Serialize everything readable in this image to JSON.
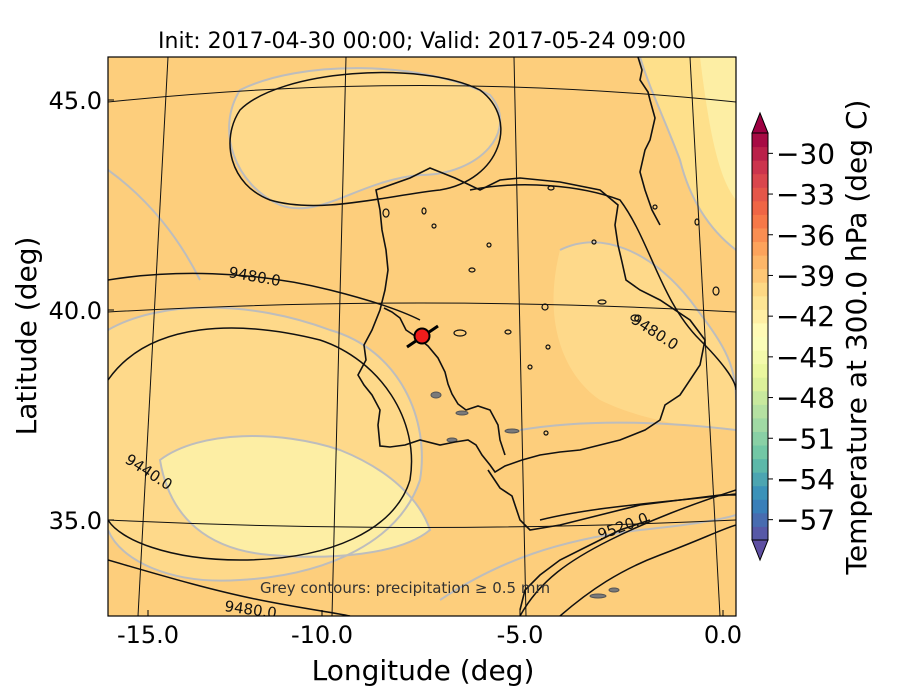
{
  "chart_data": {
    "type": "heatmap",
    "title": "Init: 2017-04-30 00:00; Valid: 2017-05-24 09:00",
    "xlabel": "Longitude (deg)",
    "ylabel": "Latitude (deg)",
    "xlim": [
      -15.8,
      0.3
    ],
    "ylim": [
      32.5,
      46.2
    ],
    "x_ticks": [
      "-15.0",
      "-10.0",
      "-5.0",
      "0.0"
    ],
    "y_ticks": [
      "35.0",
      "40.0",
      "45.0"
    ],
    "annotation": "Grey contours: precipitation ≥ 0.5 mm",
    "contour_labels": [
      "9480.0",
      "9480.0",
      "9440.0",
      "9520.0",
      "9480.0"
    ],
    "marker": {
      "lon": -7.7,
      "lat": 39.3,
      "color": "#ee1c1c"
    },
    "colorbar": {
      "label": "Temperature at 300.0 hPa (deg C)",
      "ticks": [
        "−30",
        "−33",
        "−36",
        "−39",
        "−42",
        "−45",
        "−48",
        "−51",
        "−54",
        "−57"
      ],
      "range": [
        -58.5,
        -28.5
      ],
      "colormap": "Spectral_r"
    },
    "field_colors": {
      "warm": "#fdce7c",
      "mid": "#fee08b",
      "cool": "#fdf0a6",
      "precip_contour": "#b8b8b8",
      "precip_cells": "#7a7a7a"
    }
  }
}
